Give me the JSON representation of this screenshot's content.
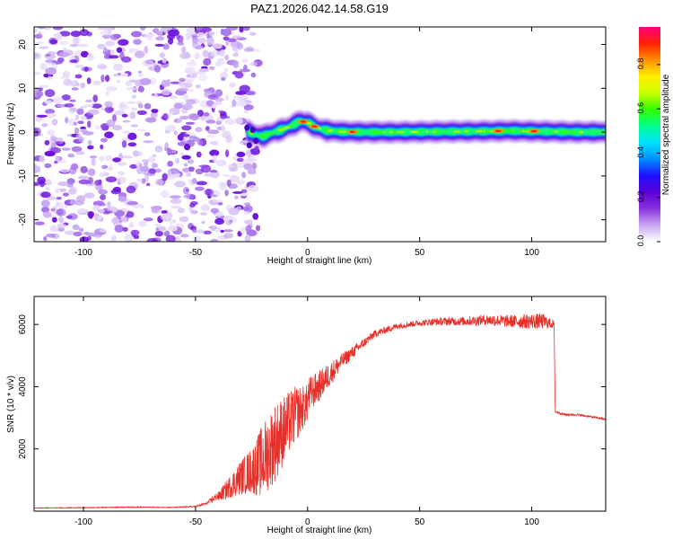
{
  "title": "PAZ1.2026.042.14.58.G19",
  "colors": {
    "line": "#e8302a",
    "axis": "#000000",
    "colormap": [
      "#ffffff",
      "#c9a8f2",
      "#8a32e0",
      "#5a00d8",
      "#1e10ff",
      "#0090ff",
      "#00e0ff",
      "#00ff90",
      "#30ff00",
      "#c8ff00",
      "#ffee00",
      "#ff9000",
      "#ff2000",
      "#ff0080"
    ]
  },
  "chart_data": [
    {
      "type": "heatmap",
      "name": "spectrogram",
      "xlabel": "Height of straight line (km)",
      "ylabel": "Frequency (Hz)",
      "xlim": [
        -122,
        133
      ],
      "ylim": [
        -25,
        24
      ],
      "xticks": [
        -100,
        -50,
        0,
        50,
        100
      ],
      "xtick_labels": [
        "-100",
        "-50",
        "0",
        "50",
        "100"
      ],
      "yticks": [
        -20,
        -10,
        0,
        10,
        20
      ],
      "ytick_labels": [
        "-20",
        "-10",
        "0",
        "10",
        "20"
      ],
      "noise_region_x": [
        -122,
        -22
      ],
      "signal": {
        "x": [
          -27,
          -24,
          -20,
          -15,
          -10,
          -6,
          -3,
          0,
          4,
          8,
          15,
          25,
          40,
          60,
          80,
          90,
          100,
          110,
          120,
          133
        ],
        "freq": [
          0.3,
          -0.5,
          -1.0,
          0.0,
          0.8,
          1.8,
          2.5,
          2.2,
          1.0,
          0.4,
          0.1,
          0.0,
          0.0,
          0.1,
          0.2,
          0.3,
          0.2,
          0.1,
          0.0,
          0.0
        ],
        "hotspots_x": [
          -2,
          3,
          20,
          85,
          101
        ]
      }
    },
    {
      "type": "colorbar",
      "name": "colorbar",
      "label": "Normalized spectral amplitude",
      "range": [
        0,
        0.97
      ],
      "ticks": [
        0.0,
        0.2,
        0.4,
        0.6,
        0.8
      ],
      "tick_labels": [
        "0.0",
        "0.2",
        "0.4",
        "0.6",
        "0.8"
      ]
    },
    {
      "type": "line",
      "name": "snr",
      "xlabel": "Height of straight line (km)",
      "ylabel": "SNR (10 * v/v)",
      "xlim": [
        -122,
        133
      ],
      "ylim": [
        0,
        6900
      ],
      "xticks": [
        -100,
        -50,
        0,
        50,
        100
      ],
      "xtick_labels": [
        "-100",
        "-50",
        "0",
        "50",
        "100"
      ],
      "yticks": [
        2000,
        4000,
        6000
      ],
      "ytick_labels": [
        "2000",
        "4000",
        "6000"
      ],
      "x": [
        -122,
        -100,
        -80,
        -60,
        -50,
        -45,
        -40,
        -35,
        -30,
        -25,
        -20,
        -15,
        -10,
        -5,
        0,
        5,
        10,
        15,
        20,
        25,
        30,
        40,
        50,
        60,
        70,
        80,
        90,
        100,
        105,
        110,
        110.5,
        115,
        120,
        125,
        133
      ],
      "y": [
        100,
        110,
        130,
        120,
        150,
        250,
        500,
        900,
        1300,
        1600,
        2100,
        2700,
        3100,
        3500,
        3700,
        4000,
        4400,
        4800,
        5100,
        5400,
        5700,
        5950,
        6050,
        6100,
        6100,
        6150,
        6100,
        6100,
        6100,
        6000,
        3200,
        3100,
        3100,
        3050,
        2950
      ],
      "noise_amplitude": [
        20,
        25,
        30,
        25,
        40,
        80,
        300,
        700,
        1100,
        1500,
        2400,
        2600,
        2200,
        1800,
        1200,
        1000,
        800,
        500,
        400,
        300,
        250,
        200,
        200,
        250,
        300,
        350,
        400,
        500,
        500,
        250,
        100,
        60,
        60,
        60,
        60
      ]
    }
  ]
}
